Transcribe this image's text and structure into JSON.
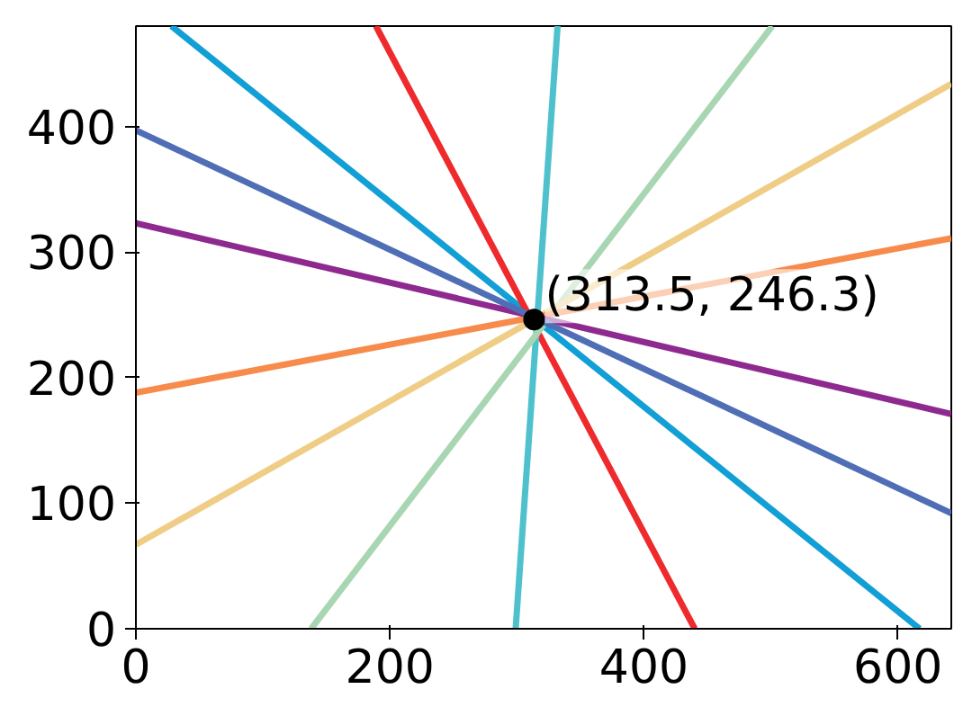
{
  "chart_data": {
    "type": "line",
    "xlim": [
      0,
      642
    ],
    "ylim": [
      0,
      480
    ],
    "xticks": [
      0,
      200,
      400,
      600
    ],
    "yticks": [
      0,
      100,
      200,
      300,
      400
    ],
    "grid": false,
    "line_style": "solid",
    "series": [
      {
        "color": "#119fd6",
        "x": [
          28,
          617
        ],
        "values": [
          480,
          0
        ]
      },
      {
        "color": "#ee2a2d",
        "x": [
          189,
          440
        ],
        "values": [
          480,
          0
        ]
      },
      {
        "color": "#4fc1ce",
        "x": [
          332,
          299
        ],
        "values": [
          480,
          0
        ]
      },
      {
        "color": "#a8d6b2",
        "x": [
          501,
          138
        ],
        "values": [
          480,
          0
        ]
      },
      {
        "color": "#efcd86",
        "x": [
          0,
          642
        ],
        "values": [
          67,
          434
        ]
      },
      {
        "color": "#f68b4b",
        "x": [
          0,
          642
        ],
        "values": [
          188,
          311
        ]
      },
      {
        "color": "#8e2a8f",
        "x": [
          0,
          642
        ],
        "values": [
          323,
          171
        ]
      },
      {
        "color": "#4f6eb6",
        "x": [
          0,
          642
        ],
        "values": [
          397,
          92
        ]
      },
      {
        "type": "scatter",
        "color": "#000000",
        "marker": "circle",
        "x": [
          313.5
        ],
        "values": [
          246.3
        ]
      }
    ],
    "annotations": [
      {
        "text": "(313.5, 246.3)",
        "x": 313.5,
        "y": 246.3
      }
    ]
  }
}
